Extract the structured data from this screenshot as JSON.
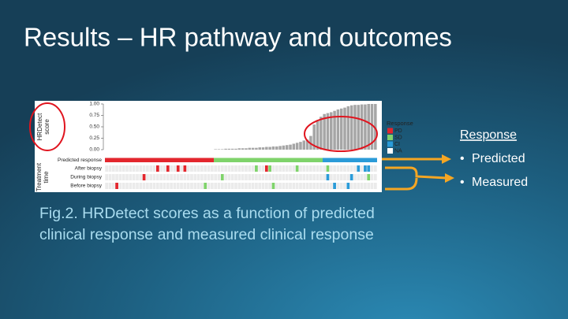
{
  "title": "Results – HR pathway and outcomes",
  "figure": {
    "type": "bar",
    "y_label": [
      "HRDetect",
      "score"
    ],
    "ylim": [
      0,
      1
    ],
    "yticks": [
      {
        "value": 0,
        "label": "0.00"
      },
      {
        "value": 0.25,
        "label": "0.25"
      },
      {
        "value": 0.5,
        "label": "0.50"
      },
      {
        "value": 0.75,
        "label": "0.75"
      },
      {
        "value": 1,
        "label": "1.00"
      }
    ],
    "bar_color": "#a6a6a6",
    "scores": [
      0,
      0,
      0,
      0,
      0,
      0,
      0,
      0,
      0,
      0,
      0,
      0,
      0,
      0,
      0,
      0,
      0,
      0,
      0,
      0,
      0,
      0,
      0,
      0,
      0,
      0,
      0,
      0,
      0,
      0,
      0,
      0,
      0.01,
      0.01,
      0.01,
      0.02,
      0.02,
      0.02,
      0.02,
      0.03,
      0.03,
      0.03,
      0.04,
      0.04,
      0.04,
      0.05,
      0.05,
      0.06,
      0.06,
      0.07,
      0.07,
      0.08,
      0.09,
      0.1,
      0.11,
      0.13,
      0.15,
      0.17,
      0.2,
      0.22,
      0.3,
      0.55,
      0.65,
      0.72,
      0.78,
      0.8,
      0.82,
      0.85,
      0.88,
      0.9,
      0.92,
      0.95,
      0.97,
      0.98,
      0.98,
      0.99,
      0.99,
      1,
      1,
      1
    ],
    "legend": {
      "title": "Response",
      "items": [
        {
          "label": "PD",
          "color": "#e3262d"
        },
        {
          "label": "SD",
          "color": "#7fd36b"
        },
        {
          "label": "CI",
          "color": "#2b9bd8"
        },
        {
          "label": "NA",
          "color": "#ffffff"
        }
      ]
    },
    "predicted_row": {
      "label": "Predicted response",
      "segments": [
        {
          "response": "PD",
          "start": 0,
          "end": 31
        },
        {
          "response": "SD",
          "start": 32,
          "end": 63
        },
        {
          "response": "CI",
          "start": 64,
          "end": 79
        }
      ]
    },
    "treatment_label": [
      "Treatment",
      "time"
    ],
    "treatment_rows": [
      {
        "label": "After biopsy",
        "marks": [
          {
            "index": 15,
            "response": "PD"
          },
          {
            "index": 18,
            "response": "PD"
          },
          {
            "index": 21,
            "response": "PD"
          },
          {
            "index": 23,
            "response": "PD"
          },
          {
            "index": 44,
            "response": "SD"
          },
          {
            "index": 47,
            "response": "PD"
          },
          {
            "index": 48,
            "response": "SD"
          },
          {
            "index": 56,
            "response": "SD"
          },
          {
            "index": 65,
            "response": "SD"
          },
          {
            "index": 74,
            "response": "CI"
          },
          {
            "index": 76,
            "response": "CI"
          },
          {
            "index": 77,
            "response": "CI"
          }
        ]
      },
      {
        "label": "During biopsy",
        "marks": [
          {
            "index": 11,
            "response": "PD"
          },
          {
            "index": 34,
            "response": "SD"
          },
          {
            "index": 65,
            "response": "CI"
          },
          {
            "index": 72,
            "response": "CI"
          },
          {
            "index": 77,
            "response": "SD"
          }
        ]
      },
      {
        "label": "Before biopsy",
        "marks": [
          {
            "index": 3,
            "response": "PD"
          },
          {
            "index": 29,
            "response": "SD"
          },
          {
            "index": 49,
            "response": "SD"
          },
          {
            "index": 67,
            "response": "CI"
          },
          {
            "index": 71,
            "response": "CI"
          }
        ]
      }
    ]
  },
  "side": {
    "heading": "Response",
    "items": [
      "Predicted",
      "Measured"
    ]
  },
  "caption": [
    "Fig.2. HRDetect scores as a function of predicted",
    "clinical response and measured clinical response"
  ]
}
